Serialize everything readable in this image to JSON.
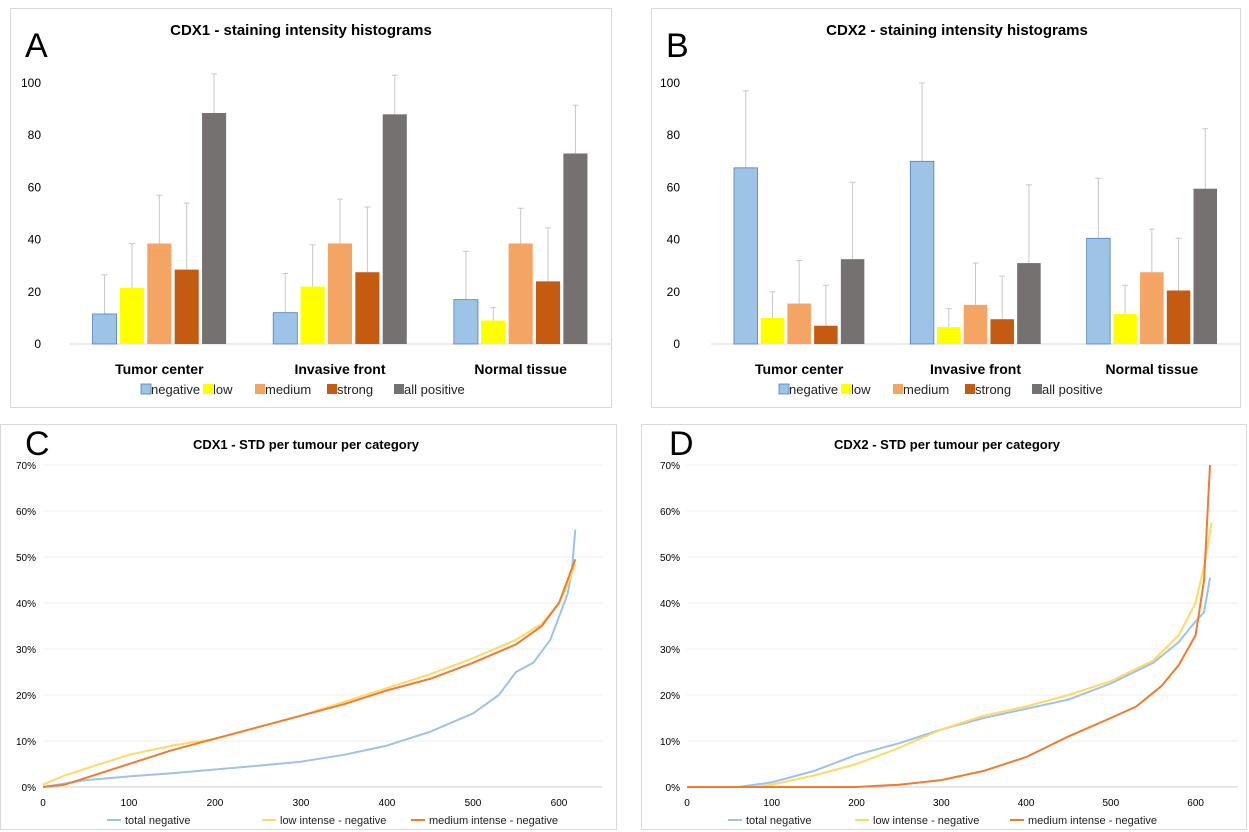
{
  "panels": [
    {
      "letter": "A",
      "chart_data": {
        "type": "bar",
        "title": "CDX1 - staining intensity histograms",
        "categories": [
          "Tumor center",
          "Invasive front",
          "Normal tissue"
        ],
        "ylim": [
          0,
          100
        ],
        "yticks": [
          "0",
          "20",
          "40",
          "60",
          "80",
          "100"
        ],
        "error_bars": true,
        "legend": "bottom",
        "series": [
          {
            "name": "negative",
            "color": "#9dc3e6",
            "values": [
              11.5,
              12,
              17
            ],
            "errors": [
              15,
              15,
              18.5
            ]
          },
          {
            "name": "low",
            "color": "#ffff00",
            "values": [
              21.5,
              22,
              9
            ],
            "errors": [
              17,
              16,
              5
            ]
          },
          {
            "name": "medium",
            "color": "#f4a463",
            "values": [
              38.5,
              38.5,
              38.5
            ],
            "errors": [
              18.5,
              17,
              13.5
            ]
          },
          {
            "name": "strong",
            "color": "#c55a11",
            "values": [
              28.5,
              27.5,
              24
            ],
            "errors": [
              25.5,
              25,
              20.5
            ]
          },
          {
            "name": "all positive",
            "color": "#767171",
            "values": [
              88.5,
              88,
              73
            ],
            "errors": [
              15,
              15,
              18.5
            ]
          }
        ]
      }
    },
    {
      "letter": "B",
      "chart_data": {
        "type": "bar",
        "title": "CDX2 - staining intensity histograms",
        "categories": [
          "Tumor center",
          "Invasive front",
          "Normal tissue"
        ],
        "ylim": [
          0,
          100
        ],
        "yticks": [
          "0",
          "20",
          "40",
          "60",
          "80",
          "100"
        ],
        "error_bars": true,
        "legend": "bottom",
        "series": [
          {
            "name": "negative",
            "color": "#9dc3e6",
            "values": [
              67.5,
              70,
              40.5
            ],
            "errors": [
              29.5,
              30,
              23
            ]
          },
          {
            "name": "low",
            "color": "#ffff00",
            "values": [
              10,
              6.5,
              11.5
            ],
            "errors": [
              10,
              7,
              11
            ]
          },
          {
            "name": "medium",
            "color": "#f4a463",
            "values": [
              15.5,
              15,
              27.5
            ],
            "errors": [
              16.5,
              16,
              16.5
            ]
          },
          {
            "name": "strong",
            "color": "#c55a11",
            "values": [
              7,
              9.5,
              20.5
            ],
            "errors": [
              15.5,
              16.5,
              20
            ]
          },
          {
            "name": "all positive",
            "color": "#767171",
            "values": [
              32.5,
              31,
              59.5
            ],
            "errors": [
              29.5,
              30,
              23
            ]
          }
        ]
      }
    },
    {
      "letter": "C",
      "chart_data": {
        "type": "line",
        "title": "CDX1 - STD per tumour per category",
        "xlim": [
          0,
          650
        ],
        "xticks": [
          0,
          100,
          200,
          300,
          400,
          500,
          600
        ],
        "ylim": [
          0,
          70
        ],
        "yticks": [
          "0%",
          "10%",
          "20%",
          "30%",
          "40%",
          "50%",
          "60%",
          "70%"
        ],
        "grid": true,
        "legend": "bottom",
        "series": [
          {
            "name": "total negative",
            "color": "#9dc3e6",
            "x": [
              0,
              50,
              100,
              150,
              200,
              250,
              300,
              350,
              400,
              450,
              500,
              530,
              550,
              570,
              590,
              600,
              610,
              615,
              619
            ],
            "y": [
              0,
              1.5,
              2.3,
              3,
              3.8,
              4.6,
              5.5,
              7,
              9,
              12,
              16,
              20,
              25,
              27,
              32,
              37,
              42,
              47,
              56
            ]
          },
          {
            "name": "low intense - negative",
            "color": "#ffd966",
            "x": [
              0,
              25,
              50,
              100,
              150,
              200,
              250,
              300,
              350,
              400,
              450,
              500,
              550,
              580,
              600,
              610,
              619
            ],
            "y": [
              0.5,
              2.5,
              4,
              7,
              9,
              10.5,
              13,
              15.5,
              18.5,
              21.5,
              24.5,
              28,
              32,
              35.5,
              40,
              44,
              48.5
            ]
          },
          {
            "name": "medium intense - negative",
            "color": "#ed7d31",
            "x": [
              0,
              25,
              50,
              100,
              150,
              200,
              250,
              300,
              350,
              400,
              450,
              500,
              550,
              580,
              600,
              610,
              619
            ],
            "y": [
              0,
              0.5,
              2,
              5,
              8,
              10.5,
              13,
              15.5,
              18,
              21,
              23.5,
              27,
              31,
              35,
              40,
              45,
              49.5
            ]
          }
        ]
      }
    },
    {
      "letter": "D",
      "chart_data": {
        "type": "line",
        "title": "CDX2 - STD per tumour per category",
        "xlim": [
          0,
          650
        ],
        "xticks": [
          0,
          100,
          200,
          300,
          400,
          500,
          600
        ],
        "ylim": [
          0,
          70
        ],
        "yticks": [
          "0%",
          "10%",
          "20%",
          "30%",
          "40%",
          "50%",
          "60%",
          "70%"
        ],
        "grid": true,
        "legend": "bottom",
        "series": [
          {
            "name": "total negative",
            "color": "#9dc3e6",
            "x": [
              0,
              60,
              100,
              150,
              200,
              250,
              300,
              350,
              400,
              450,
              500,
              550,
              580,
              600,
              610,
              617
            ],
            "y": [
              0,
              0,
              1,
              3.5,
              7,
              9.5,
              12.5,
              15,
              17,
              19,
              22.5,
              27,
              31.5,
              36,
              38,
              45.5
            ]
          },
          {
            "name": "low intense - negative",
            "color": "#ffd966",
            "x": [
              0,
              80,
              100,
              150,
              200,
              250,
              300,
              350,
              400,
              450,
              500,
              550,
              580,
              600,
              610,
              619
            ],
            "y": [
              0,
              0,
              0.5,
              2.5,
              5,
              8.5,
              12.5,
              15.5,
              17.5,
              20,
              23,
              27.5,
              33,
              40,
              48,
              57.5
            ]
          },
          {
            "name": "medium intense - negative",
            "color": "#ed7d31",
            "x": [
              0,
              200,
              250,
              300,
              350,
              400,
              450,
              500,
              530,
              560,
              580,
              600,
              610,
              617
            ],
            "y": [
              0,
              0,
              0.5,
              1.5,
              3.5,
              6.5,
              11,
              15,
              17.5,
              22,
              26.5,
              33,
              45,
              70
            ]
          }
        ]
      }
    }
  ]
}
